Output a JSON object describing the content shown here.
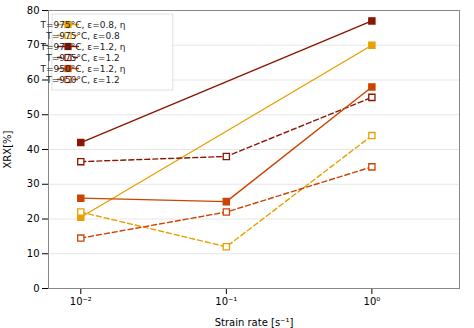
{
  "chart_data": {
    "type": "line",
    "x": [
      0.01,
      0.1,
      1.0
    ],
    "series": [
      {
        "name": "T=975°C, ε=0.8, η",
        "color": "#E8A000",
        "line_style": "solid",
        "marker": "square",
        "values": [
          20.5,
          null,
          70.0
        ]
      },
      {
        "name": "T=975°C, ε=0.8",
        "color": "#E8A000",
        "line_style": "dashed",
        "marker": "square-open",
        "values": [
          22.0,
          12.0,
          44.0
        ]
      },
      {
        "name": "T=975°C, ε=1.2, η",
        "color": "#8B1500",
        "line_style": "solid",
        "marker": "square",
        "values": [
          42.0,
          null,
          77.0
        ]
      },
      {
        "name": "T=975°C, ε=1.2",
        "color": "#8B1500",
        "line_style": "dashed",
        "marker": "square-open",
        "values": [
          36.5,
          38.0,
          55.0
        ]
      },
      {
        "name": "T=950°C, ε=1.2, η",
        "color": "#CC4400",
        "line_style": "solid",
        "marker": "square",
        "values": [
          26.0,
          25.0,
          58.0
        ]
      },
      {
        "name": "T=950°C, ε=1.2",
        "color": "#CC4400",
        "line_style": "dashed",
        "marker": "square-open",
        "values": [
          14.5,
          22.0,
          35.0
        ]
      }
    ],
    "xlabel": "Strain rate [s⁻¹]",
    "ylabel": "XRX[%]",
    "log": "x",
    "xlim": [
      0.006,
      4.0
    ],
    "xticks": [
      {
        "value": 0.01,
        "label": "10⁻²"
      },
      {
        "value": 0.1,
        "label": "10⁻¹"
      },
      {
        "value": 1.0,
        "label": "10⁰"
      }
    ],
    "ylim": [
      0,
      80
    ],
    "yticks": [
      0,
      10,
      20,
      30,
      40,
      50,
      60,
      70,
      80
    ],
    "grid": true,
    "legend": "upper left"
  }
}
